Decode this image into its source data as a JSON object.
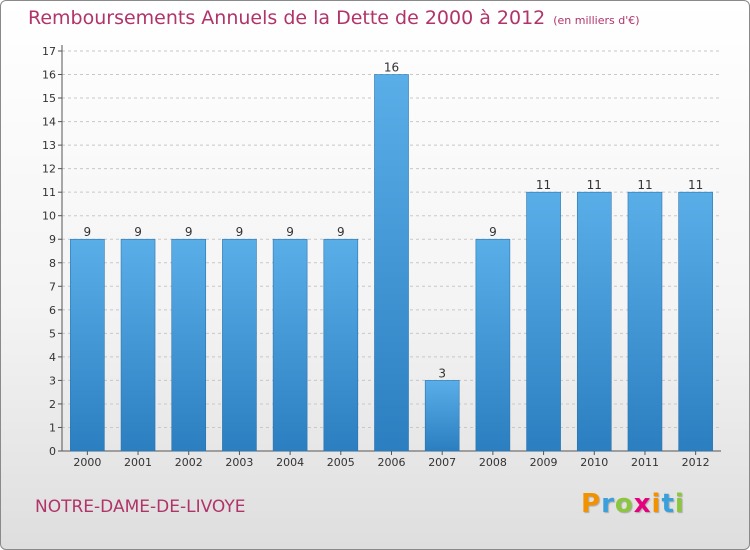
{
  "header": {
    "title": "Remboursements Annuels de la Dette de 2000 à 2012",
    "unit_note": "(en milliers d'€)"
  },
  "commune": "NOTRE-DAME-DE-LIVOYE",
  "brand": {
    "name": "Proxiti",
    "letters": [
      "P",
      "r",
      "o",
      "x",
      "i",
      "t",
      "i"
    ],
    "letter_colors": [
      "#f39200",
      "#3aa0dc",
      "#8cc63f",
      "#e6007e",
      "#f39200",
      "#3aa0dc",
      "#8cc63f"
    ]
  },
  "colors": {
    "title": "#b0346a",
    "bar_top": "#5aaee8",
    "bar_bottom": "#2b7fc0",
    "grid": "#c8c8c8"
  },
  "chart_data": {
    "type": "bar",
    "title": "Remboursements Annuels de la Dette de 2000 à 2012",
    "xlabel": "",
    "ylabel": "",
    "ylim": [
      0,
      17
    ],
    "yticks": [
      0,
      1,
      2,
      3,
      4,
      5,
      6,
      7,
      8,
      9,
      10,
      11,
      12,
      13,
      14,
      15,
      16,
      17
    ],
    "grid": true,
    "legend": "none",
    "categories": [
      "2000",
      "2001",
      "2002",
      "2003",
      "2004",
      "2005",
      "2006",
      "2007",
      "2008",
      "2009",
      "2010",
      "2011",
      "2012"
    ],
    "values": [
      9,
      9,
      9,
      9,
      9,
      9,
      16,
      3,
      9,
      11,
      11,
      11,
      11
    ],
    "data_labels": [
      "9",
      "9",
      "9",
      "9",
      "9",
      "9",
      "16",
      "3",
      "9",
      "11",
      "11",
      "11",
      "11"
    ]
  }
}
